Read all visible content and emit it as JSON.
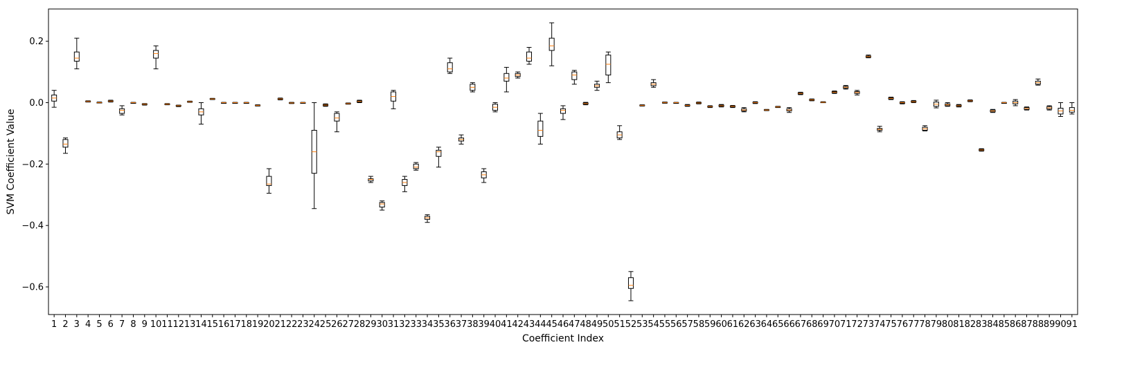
{
  "chart_data": {
    "type": "boxplot",
    "xlabel": "Coefficient Index",
    "ylabel": "SVM Coefficient Value",
    "ylim": [
      -0.69,
      0.305
    ],
    "yticks": [
      -0.6,
      -0.4,
      -0.2,
      0.0,
      0.2
    ],
    "ytick_labels": [
      "−0.6",
      "−0.4",
      "−0.2",
      "0.0",
      "0.2"
    ],
    "xlim": [
      0.5,
      91.5
    ],
    "grid": false,
    "colors": {
      "box": "#000000",
      "median": "#ff7f0e"
    },
    "boxes": [
      {
        "label": "1",
        "whislo": -0.015,
        "q1": 0.005,
        "med": 0.015,
        "q3": 0.025,
        "whishi": 0.04
      },
      {
        "label": "2",
        "whislo": -0.165,
        "q1": -0.145,
        "med": -0.135,
        "q3": -0.12,
        "whishi": -0.115
      },
      {
        "label": "3",
        "whislo": 0.11,
        "q1": 0.135,
        "med": 0.145,
        "q3": 0.165,
        "whishi": 0.21
      },
      {
        "label": "4",
        "whislo": 0.002,
        "q1": 0.003,
        "med": 0.004,
        "q3": 0.005,
        "whishi": 0.006
      },
      {
        "label": "5",
        "whislo": -0.001,
        "q1": 0.0,
        "med": 0.0,
        "q3": 0.001,
        "whishi": 0.002
      },
      {
        "label": "6",
        "whislo": 0.002,
        "q1": 0.004,
        "med": 0.005,
        "q3": 0.006,
        "whishi": 0.008
      },
      {
        "label": "7",
        "whislo": -0.04,
        "q1": -0.035,
        "med": -0.025,
        "q3": -0.02,
        "whishi": -0.01
      },
      {
        "label": "8",
        "whislo": -0.002,
        "q1": -0.001,
        "med": 0.0,
        "q3": 0.0,
        "whishi": 0.001
      },
      {
        "label": "9",
        "whislo": -0.008,
        "q1": -0.006,
        "med": -0.005,
        "q3": -0.004,
        "whishi": -0.003
      },
      {
        "label": "10",
        "whislo": 0.11,
        "q1": 0.145,
        "med": 0.16,
        "q3": 0.17,
        "whishi": 0.185
      },
      {
        "label": "11",
        "whislo": -0.007,
        "q1": -0.006,
        "med": -0.005,
        "q3": -0.004,
        "whishi": -0.003
      },
      {
        "label": "12",
        "whislo": -0.013,
        "q1": -0.011,
        "med": -0.01,
        "q3": -0.009,
        "whishi": -0.008
      },
      {
        "label": "13",
        "whislo": 0.001,
        "q1": 0.002,
        "med": 0.003,
        "q3": 0.004,
        "whishi": 0.005
      },
      {
        "label": "14",
        "whislo": -0.07,
        "q1": -0.04,
        "med": -0.03,
        "q3": -0.02,
        "whishi": 0.0
      },
      {
        "label": "15",
        "whislo": 0.01,
        "q1": 0.011,
        "med": 0.012,
        "q3": 0.013,
        "whishi": 0.014
      },
      {
        "label": "16",
        "whislo": -0.002,
        "q1": -0.001,
        "med": 0.0,
        "q3": 0.0,
        "whishi": 0.001
      },
      {
        "label": "17",
        "whislo": -0.002,
        "q1": -0.001,
        "med": 0.0,
        "q3": 0.0,
        "whishi": 0.001
      },
      {
        "label": "18",
        "whislo": -0.002,
        "q1": -0.001,
        "med": 0.0,
        "q3": 0.0,
        "whishi": 0.001
      },
      {
        "label": "19",
        "whislo": -0.011,
        "q1": -0.01,
        "med": -0.009,
        "q3": -0.008,
        "whishi": -0.007
      },
      {
        "label": "20",
        "whislo": -0.295,
        "q1": -0.27,
        "med": -0.265,
        "q3": -0.24,
        "whishi": -0.215
      },
      {
        "label": "21",
        "whislo": 0.009,
        "q1": 0.011,
        "med": 0.012,
        "q3": 0.013,
        "whishi": 0.015
      },
      {
        "label": "22",
        "whislo": -0.003,
        "q1": -0.002,
        "med": -0.001,
        "q3": 0.0,
        "whishi": 0.001
      },
      {
        "label": "23",
        "whislo": -0.002,
        "q1": -0.001,
        "med": 0.0,
        "q3": 0.0,
        "whishi": 0.001
      },
      {
        "label": "24",
        "whislo": -0.345,
        "q1": -0.23,
        "med": -0.16,
        "q3": -0.09,
        "whishi": 0.0
      },
      {
        "label": "25",
        "whislo": -0.012,
        "q1": -0.01,
        "med": -0.008,
        "q3": -0.006,
        "whishi": -0.004
      },
      {
        "label": "26",
        "whislo": -0.095,
        "q1": -0.06,
        "med": -0.05,
        "q3": -0.035,
        "whishi": -0.03
      },
      {
        "label": "27",
        "whislo": -0.005,
        "q1": -0.004,
        "med": -0.003,
        "q3": -0.002,
        "whishi": -0.001
      },
      {
        "label": "28",
        "whislo": 0.0,
        "q1": 0.002,
        "med": 0.004,
        "q3": 0.006,
        "whishi": 0.008
      },
      {
        "label": "29",
        "whislo": -0.26,
        "q1": -0.255,
        "med": -0.25,
        "q3": -0.248,
        "whishi": -0.24
      },
      {
        "label": "30",
        "whislo": -0.35,
        "q1": -0.34,
        "med": -0.33,
        "q3": -0.325,
        "whishi": -0.32
      },
      {
        "label": "31",
        "whislo": -0.02,
        "q1": 0.005,
        "med": 0.02,
        "q3": 0.035,
        "whishi": 0.04
      },
      {
        "label": "32",
        "whislo": -0.29,
        "q1": -0.27,
        "med": -0.26,
        "q3": -0.25,
        "whishi": -0.24
      },
      {
        "label": "33",
        "whislo": -0.22,
        "q1": -0.215,
        "med": -0.21,
        "q3": -0.2,
        "whishi": -0.195
      },
      {
        "label": "34",
        "whislo": -0.39,
        "q1": -0.38,
        "med": -0.375,
        "q3": -0.37,
        "whishi": -0.365
      },
      {
        "label": "35",
        "whislo": -0.21,
        "q1": -0.175,
        "med": -0.16,
        "q3": -0.155,
        "whishi": -0.145
      },
      {
        "label": "36",
        "whislo": 0.095,
        "q1": 0.1,
        "med": 0.11,
        "q3": 0.13,
        "whishi": 0.145
      },
      {
        "label": "37",
        "whislo": -0.135,
        "q1": -0.125,
        "med": -0.12,
        "q3": -0.115,
        "whishi": -0.105
      },
      {
        "label": "38",
        "whislo": 0.035,
        "q1": 0.04,
        "med": 0.05,
        "q3": 0.06,
        "whishi": 0.065
      },
      {
        "label": "39",
        "whislo": -0.26,
        "q1": -0.245,
        "med": -0.235,
        "q3": -0.225,
        "whishi": -0.215
      },
      {
        "label": "40",
        "whislo": -0.03,
        "q1": -0.025,
        "med": -0.015,
        "q3": -0.005,
        "whishi": 0.0
      },
      {
        "label": "41",
        "whislo": 0.035,
        "q1": 0.07,
        "med": 0.08,
        "q3": 0.095,
        "whishi": 0.115
      },
      {
        "label": "42",
        "whislo": 0.08,
        "q1": 0.085,
        "med": 0.09,
        "q3": 0.095,
        "whishi": 0.1
      },
      {
        "label": "43",
        "whislo": 0.125,
        "q1": 0.135,
        "med": 0.145,
        "q3": 0.165,
        "whishi": 0.18
      },
      {
        "label": "44",
        "whislo": -0.135,
        "q1": -0.11,
        "med": -0.09,
        "q3": -0.06,
        "whishi": -0.035
      },
      {
        "label": "45",
        "whislo": 0.12,
        "q1": 0.17,
        "med": 0.185,
        "q3": 0.21,
        "whishi": 0.26
      },
      {
        "label": "46",
        "whislo": -0.055,
        "q1": -0.035,
        "med": -0.025,
        "q3": -0.02,
        "whishi": -0.01
      },
      {
        "label": "47",
        "whislo": 0.06,
        "q1": 0.075,
        "med": 0.09,
        "q3": 0.1,
        "whishi": 0.105
      },
      {
        "label": "48",
        "whislo": -0.007,
        "q1": -0.005,
        "med": -0.003,
        "q3": -0.001,
        "whishi": 0.001
      },
      {
        "label": "49",
        "whislo": 0.04,
        "q1": 0.05,
        "med": 0.055,
        "q3": 0.06,
        "whishi": 0.07
      },
      {
        "label": "50",
        "whislo": 0.065,
        "q1": 0.09,
        "med": 0.125,
        "q3": 0.155,
        "whishi": 0.165
      },
      {
        "label": "51",
        "whislo": -0.12,
        "q1": -0.115,
        "med": -0.105,
        "q3": -0.095,
        "whishi": -0.075
      },
      {
        "label": "52",
        "whislo": -0.645,
        "q1": -0.605,
        "med": -0.595,
        "q3": -0.57,
        "whishi": -0.55
      },
      {
        "label": "53",
        "whislo": -0.011,
        "q1": -0.01,
        "med": -0.009,
        "q3": -0.008,
        "whishi": -0.007
      },
      {
        "label": "54",
        "whislo": 0.05,
        "q1": 0.055,
        "med": 0.06,
        "q3": 0.065,
        "whishi": 0.075
      },
      {
        "label": "55",
        "whislo": -0.002,
        "q1": -0.001,
        "med": 0.0,
        "q3": 0.001,
        "whishi": 0.002
      },
      {
        "label": "56",
        "whislo": -0.002,
        "q1": -0.001,
        "med": 0.0,
        "q3": 0.0,
        "whishi": 0.001
      },
      {
        "label": "57",
        "whislo": -0.012,
        "q1": -0.01,
        "med": -0.009,
        "q3": -0.008,
        "whishi": -0.006
      },
      {
        "label": "58",
        "whislo": -0.004,
        "q1": -0.002,
        "med": -0.001,
        "q3": 0.0,
        "whishi": 0.002
      },
      {
        "label": "59",
        "whislo": -0.016,
        "q1": -0.014,
        "med": -0.013,
        "q3": -0.012,
        "whishi": -0.01
      },
      {
        "label": "60",
        "whislo": -0.014,
        "q1": -0.012,
        "med": -0.01,
        "q3": -0.008,
        "whishi": -0.006
      },
      {
        "label": "61",
        "whislo": -0.016,
        "q1": -0.014,
        "med": -0.012,
        "q3": -0.011,
        "whishi": -0.009
      },
      {
        "label": "62",
        "whislo": -0.03,
        "q1": -0.027,
        "med": -0.024,
        "q3": -0.02,
        "whishi": -0.016
      },
      {
        "label": "63",
        "whislo": -0.003,
        "q1": -0.001,
        "med": 0.0,
        "q3": 0.001,
        "whishi": 0.003
      },
      {
        "label": "64",
        "whislo": -0.026,
        "q1": -0.025,
        "med": -0.024,
        "q3": -0.023,
        "whishi": -0.022
      },
      {
        "label": "65",
        "whislo": -0.016,
        "q1": -0.015,
        "med": -0.014,
        "q3": -0.013,
        "whishi": -0.012
      },
      {
        "label": "66",
        "whislo": -0.032,
        "q1": -0.027,
        "med": -0.024,
        "q3": -0.02,
        "whishi": -0.016
      },
      {
        "label": "67",
        "whislo": 0.026,
        "q1": 0.028,
        "med": 0.03,
        "q3": 0.032,
        "whishi": 0.034
      },
      {
        "label": "68",
        "whislo": 0.006,
        "q1": 0.008,
        "med": 0.009,
        "q3": 0.01,
        "whishi": 0.012
      },
      {
        "label": "69",
        "whislo": 0.0,
        "q1": 0.0,
        "med": 0.001,
        "q3": 0.002,
        "whishi": 0.003
      },
      {
        "label": "70",
        "whislo": 0.03,
        "q1": 0.032,
        "med": 0.034,
        "q3": 0.036,
        "whishi": 0.038
      },
      {
        "label": "71",
        "whislo": 0.044,
        "q1": 0.047,
        "med": 0.05,
        "q3": 0.053,
        "whishi": 0.056
      },
      {
        "label": "72",
        "whislo": 0.025,
        "q1": 0.03,
        "med": 0.033,
        "q3": 0.036,
        "whishi": 0.04
      },
      {
        "label": "73",
        "whislo": 0.146,
        "q1": 0.148,
        "med": 0.15,
        "q3": 0.152,
        "whishi": 0.155
      },
      {
        "label": "74",
        "whislo": -0.095,
        "q1": -0.09,
        "med": -0.087,
        "q3": -0.084,
        "whishi": -0.077
      },
      {
        "label": "75",
        "whislo": 0.01,
        "q1": 0.012,
        "med": 0.014,
        "q3": 0.016,
        "whishi": 0.018
      },
      {
        "label": "76",
        "whislo": -0.004,
        "q1": -0.002,
        "med": 0.0,
        "q3": 0.001,
        "whishi": 0.003
      },
      {
        "label": "77",
        "whislo": 0.0,
        "q1": 0.002,
        "med": 0.003,
        "q3": 0.005,
        "whishi": 0.007
      },
      {
        "label": "78",
        "whislo": -0.092,
        "q1": -0.09,
        "med": -0.085,
        "q3": -0.08,
        "whishi": -0.075
      },
      {
        "label": "79",
        "whislo": -0.017,
        "q1": -0.012,
        "med": -0.005,
        "q3": 0.002,
        "whishi": 0.008
      },
      {
        "label": "80",
        "whislo": -0.012,
        "q1": -0.01,
        "med": -0.007,
        "q3": -0.004,
        "whishi": 0.0
      },
      {
        "label": "81",
        "whislo": -0.014,
        "q1": -0.012,
        "med": -0.01,
        "q3": -0.008,
        "whishi": -0.006
      },
      {
        "label": "82",
        "whislo": 0.003,
        "q1": 0.005,
        "med": 0.006,
        "q3": 0.007,
        "whishi": 0.009
      },
      {
        "label": "83",
        "whislo": -0.158,
        "q1": -0.156,
        "med": -0.154,
        "q3": -0.152,
        "whishi": -0.15
      },
      {
        "label": "84",
        "whislo": -0.032,
        "q1": -0.03,
        "med": -0.027,
        "q3": -0.024,
        "whishi": -0.022
      },
      {
        "label": "85",
        "whislo": -0.002,
        "q1": -0.001,
        "med": 0.0,
        "q3": 0.0,
        "whishi": 0.001
      },
      {
        "label": "86",
        "whislo": -0.01,
        "q1": -0.004,
        "med": 0.0,
        "q3": 0.005,
        "whishi": 0.01
      },
      {
        "label": "87",
        "whislo": -0.024,
        "q1": -0.022,
        "med": -0.019,
        "q3": -0.016,
        "whishi": -0.014
      },
      {
        "label": "88",
        "whislo": 0.057,
        "q1": 0.06,
        "med": 0.065,
        "q3": 0.07,
        "whishi": 0.077
      },
      {
        "label": "89",
        "whislo": -0.024,
        "q1": -0.021,
        "med": -0.017,
        "q3": -0.013,
        "whishi": -0.01
      },
      {
        "label": "90",
        "whislo": -0.045,
        "q1": -0.037,
        "med": -0.027,
        "q3": -0.018,
        "whishi": 0.0
      },
      {
        "label": "91",
        "whislo": -0.037,
        "q1": -0.031,
        "med": -0.025,
        "q3": -0.016,
        "whishi": 0.0
      }
    ]
  }
}
